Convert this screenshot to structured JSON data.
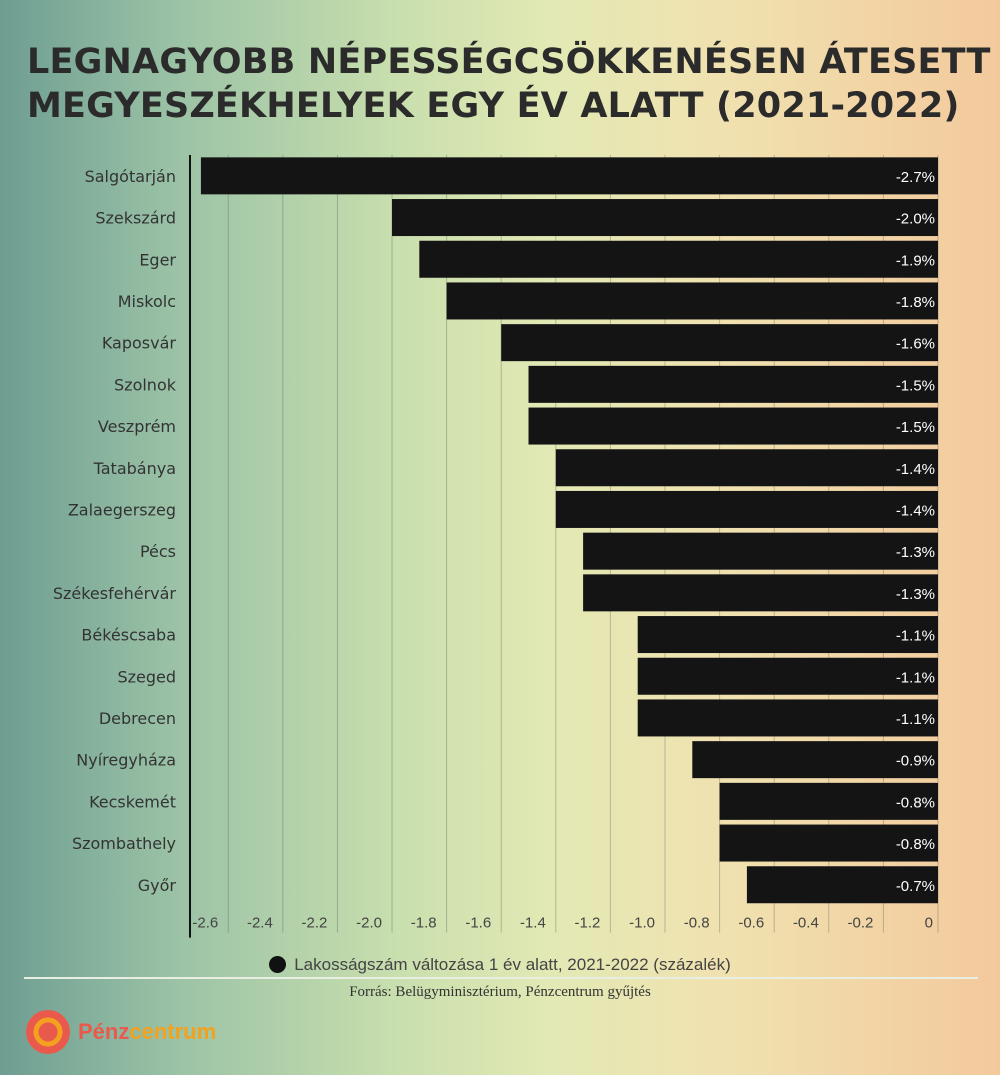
{
  "chart_data": {
    "type": "bar",
    "orientation": "horizontal",
    "title": "LEGNAGYOBB NÉPESSÉGCSÖKKENÉSEN ÁTESETT MEGYESZÉKHELYEK EGY ÉV ALATT (2021-2022)",
    "categories": [
      "Salgótarján",
      "Szekszárd",
      "Eger",
      "Miskolc",
      "Kaposvár",
      "Szolnok",
      "Veszprém",
      "Tatabánya",
      "Zalaegerszeg",
      "Pécs",
      "Székesfehérvár",
      "Békéscsaba",
      "Szeged",
      "Debrecen",
      "Nyíregyháza",
      "Kecskemét",
      "Szombathely",
      "Győr"
    ],
    "values": [
      -2.7,
      -2.0,
      -1.9,
      -1.8,
      -1.6,
      -1.5,
      -1.5,
      -1.4,
      -1.4,
      -1.3,
      -1.3,
      -1.1,
      -1.1,
      -1.1,
      -0.9,
      -0.8,
      -0.8,
      -0.7
    ],
    "data_labels": [
      "-2.7%",
      "-2.0%",
      "-1.9%",
      "-1.8%",
      "-1.6%",
      "-1.5%",
      "-1.5%",
      "-1.4%",
      "-1.4%",
      "-1.3%",
      "-1.3%",
      "-1.1%",
      "-1.1%",
      "-1.1%",
      "-0.9%",
      "-0.8%",
      "-0.8%",
      "-0.7%"
    ],
    "xticks": [
      "-2.6",
      "-2.4",
      "-2.2",
      "-2.0",
      "-1.8",
      "-1.6",
      "-1.4",
      "-1.2",
      "-1.0",
      "-0.8",
      "-0.6",
      "-0.4",
      "-0.2",
      "0"
    ],
    "xtick_values": [
      -2.6,
      -2.4,
      -2.2,
      -2.0,
      -1.8,
      -1.6,
      -1.4,
      -1.2,
      -1.0,
      -0.8,
      -0.6,
      -0.4,
      -0.2,
      0
    ],
    "xlim": [
      -2.74,
      0
    ],
    "grid": true,
    "bar_color": "#141414",
    "legend": {
      "label": "Lakosságszám változása 1 év alatt, 2021-2022 (százalék)",
      "position": "bottom"
    }
  },
  "title_lines": [
    "LEGNAGYOBB NÉPESSÉGCSÖKKENÉSEN ÁTESETT",
    "MEGYESZÉKHELYEK EGY ÉV ALATT (2021-2022)"
  ],
  "source": "Forrás: Belügyminisztérium, Pénzcentrum gyűjtés",
  "logo": {
    "part1": "Pénz",
    "part2": "centrum"
  }
}
